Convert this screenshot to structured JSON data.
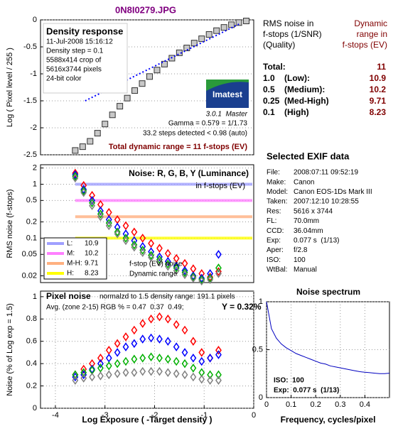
{
  "title": "0N8I0279.JPG",
  "chart_data": [
    {
      "type": "scatter",
      "ylabel": "Log ( Pixel level / 255 )",
      "xlim": [
        -4.3,
        0
      ],
      "ylim": [
        -2.5,
        0
      ],
      "yticks": [
        0,
        -0.5,
        -1,
        -1.5,
        -2,
        -2.5
      ],
      "grid": true,
      "annotations": [
        "Density response",
        "11-Jul-2008 15:16:12",
        "Density step = 0.1",
        "5588x414 crop of",
        "5616x3744 pixels",
        "24-bit color",
        "Gamma = 0.579 = 1/1.73",
        "33.2 steps detected < 0.98 (auto)",
        "Total dynamic range = 11 f-stops (EV)"
      ],
      "logo": [
        "Imatest",
        "3.0.1  Master"
      ],
      "series": [
        {
          "marker": "square",
          "color": "#c8c8c8",
          "x": [
            -3.6,
            -3.45,
            -3.3,
            -3.15,
            -3.0,
            -2.85,
            -2.7,
            -2.55,
            -2.4,
            -2.25,
            -2.1,
            -1.95,
            -1.8,
            -1.65,
            -1.5,
            -1.35,
            -1.2,
            -1.05,
            -0.9,
            -0.75,
            -0.6,
            -0.45,
            -0.3,
            -0.15
          ],
          "values": [
            -2.42,
            -2.35,
            -2.25,
            -2.1,
            -1.93,
            -1.76,
            -1.6,
            -1.45,
            -1.31,
            -1.18,
            -1.05,
            -0.93,
            -0.82,
            -0.71,
            -0.61,
            -0.52,
            -0.43,
            -0.35,
            -0.27,
            -0.2,
            -0.14,
            -0.09,
            -0.05,
            -0.02
          ]
        },
        {
          "marker": "dotted",
          "color": "#0000ff",
          "x": [
            -3.4,
            -0.3
          ],
          "values": [
            -1.5,
            -0.08
          ]
        }
      ]
    },
    {
      "type": "scatter",
      "title": "Noise: R, G, B, Y (Luminance)",
      "ylabel": "RMS noise (f-stops)",
      "log": true,
      "xlim": [
        -4.3,
        0
      ],
      "ylim": [
        0.015,
        2.3
      ],
      "yticks": [
        2,
        1,
        0.5,
        0.2,
        0.1,
        0.05,
        0.02
      ],
      "grid": true,
      "annotations": [
        "in f-stops (EV)",
        "f-stop (EV) noise",
        "Dynamic range"
      ],
      "bands": [
        {
          "name": "L:",
          "value": 10.9,
          "level": 1,
          "color": "#a0a0ff"
        },
        {
          "name": "M:",
          "value": 10.2,
          "level": 0.5,
          "color": "#ff80ff"
        },
        {
          "name": "M-H:",
          "value": 9.71,
          "level": 0.25,
          "color": "#ffb080"
        },
        {
          "name": "H:",
          "value": 8.23,
          "level": 0.1,
          "color": "#ffff00"
        }
      ],
      "x": [
        -3.6,
        -3.43,
        -3.26,
        -3.09,
        -2.92,
        -2.75,
        -2.58,
        -2.41,
        -2.24,
        -2.07,
        -1.9,
        -1.73,
        -1.56,
        -1.39,
        -1.22,
        -1.05,
        -0.88,
        -0.71
      ],
      "series": [
        {
          "marker": "diamond",
          "color": "#ff0000",
          "values": [
            1.6,
            0.95,
            0.62,
            0.42,
            0.3,
            0.22,
            0.17,
            0.13,
            0.1,
            0.08,
            0.065,
            0.052,
            0.042,
            0.034,
            0.027,
            0.022,
            0.019,
            0.024
          ]
        },
        {
          "marker": "diamond",
          "color": "#0000ff",
          "values": [
            1.5,
            0.8,
            0.5,
            0.32,
            0.22,
            0.16,
            0.12,
            0.09,
            0.07,
            0.056,
            0.045,
            0.037,
            0.03,
            0.025,
            0.02,
            0.018,
            0.022,
            0.05
          ]
        },
        {
          "marker": "diamond",
          "color": "#00b000",
          "values": [
            1.4,
            0.75,
            0.45,
            0.28,
            0.19,
            0.13,
            0.1,
            0.075,
            0.06,
            0.048,
            0.04,
            0.033,
            0.028,
            0.023,
            0.019,
            0.017,
            0.018,
            0.028
          ]
        },
        {
          "marker": "diamond",
          "color": "#808080",
          "values": [
            1.3,
            0.7,
            0.4,
            0.25,
            0.17,
            0.12,
            0.09,
            0.068,
            0.054,
            0.044,
            0.036,
            0.03,
            0.025,
            0.021,
            0.018,
            0.016,
            0.017,
            0.022
          ]
        }
      ]
    },
    {
      "type": "scatter",
      "title": "Pixel noise",
      "subtitle": "normalzd to 1.5 density range: 191.1 pixels",
      "annotations": [
        "Avg. (zone 2-15) RGB % = 0.47  0.37  0.49;",
        "Y = 0.32%"
      ],
      "ylabel": "Noise (% of Log exp = 1.5)",
      "xlabel": "Log Exposure ( -Target density )",
      "xlim": [
        -4.3,
        0
      ],
      "xticks": [
        -4,
        -3,
        -2,
        -1,
        0
      ],
      "ylim": [
        0,
        1.05
      ],
      "yticks": [
        0,
        0.2,
        0.4,
        0.6,
        0.8,
        1
      ],
      "grid": true,
      "x": [
        -3.6,
        -3.43,
        -3.26,
        -3.09,
        -2.92,
        -2.75,
        -2.58,
        -2.41,
        -2.24,
        -2.07,
        -1.9,
        -1.73,
        -1.56,
        -1.39,
        -1.22,
        -1.05,
        -0.88,
        -0.71
      ],
      "series": [
        {
          "marker": "diamond",
          "color": "#ff0000",
          "values": [
            0.3,
            0.35,
            0.4,
            0.45,
            0.52,
            0.58,
            0.64,
            0.7,
            0.76,
            0.8,
            0.82,
            0.8,
            0.75,
            0.7,
            0.6,
            0.5,
            0.45,
            0.52
          ]
        },
        {
          "marker": "diamond",
          "color": "#0000ff",
          "values": [
            0.28,
            0.3,
            0.35,
            0.4,
            0.45,
            0.5,
            0.55,
            0.58,
            0.62,
            0.63,
            0.62,
            0.6,
            0.55,
            0.5,
            0.45,
            0.42,
            0.45,
            0.48
          ]
        },
        {
          "marker": "diamond",
          "color": "#00b000",
          "values": [
            0.3,
            0.32,
            0.34,
            0.36,
            0.38,
            0.4,
            0.42,
            0.44,
            0.45,
            0.46,
            0.45,
            0.44,
            0.42,
            0.4,
            0.36,
            0.32,
            0.3,
            0.3
          ]
        },
        {
          "marker": "diamond",
          "color": "#808080",
          "values": [
            0.25,
            0.27,
            0.28,
            0.29,
            0.3,
            0.31,
            0.32,
            0.32,
            0.33,
            0.33,
            0.33,
            0.32,
            0.31,
            0.3,
            0.28,
            0.26,
            0.25,
            0.25
          ]
        }
      ]
    },
    {
      "type": "line",
      "title": "Noise spectrum",
      "xlabel": "Frequency, cycles/pixel",
      "annotations": [
        "ISO:  100",
        "Exp:  0.077 s  (1/13)"
      ],
      "xlim": [
        0,
        0.5
      ],
      "xticks": [
        0,
        0.1,
        0.2,
        0.3,
        0.4
      ],
      "ylim": [
        0,
        1
      ],
      "yticks": [
        0,
        0.5,
        1
      ],
      "grid": true,
      "x": [
        0,
        0.02,
        0.04,
        0.06,
        0.08,
        0.1,
        0.12,
        0.14,
        0.16,
        0.18,
        0.2,
        0.22,
        0.24,
        0.26,
        0.28,
        0.3,
        0.32,
        0.34,
        0.36,
        0.38,
        0.4,
        0.42,
        0.44,
        0.46,
        0.48,
        0.5
      ],
      "series": [
        {
          "marker": "line",
          "color": "#0000c0",
          "values": [
            1,
            0.72,
            0.62,
            0.56,
            0.52,
            0.49,
            0.46,
            0.44,
            0.42,
            0.4,
            0.38,
            0.36,
            0.35,
            0.33,
            0.32,
            0.31,
            0.3,
            0.29,
            0.28,
            0.27,
            0.265,
            0.26,
            0.255,
            0.25,
            0.25,
            0.255
          ]
        }
      ]
    }
  ],
  "summary": {
    "left": [
      "RMS noise in",
      "f-stops (1/SNR)",
      "(Quality)"
    ],
    "right": [
      "Dynamic",
      "range in",
      "f-stops (EV)"
    ],
    "rows": [
      {
        "label": "Total:",
        "value": 11
      },
      {
        "label": "1.0    (Low):",
        "value": 10.9
      },
      {
        "label": "0.5    (Medium):",
        "value": 10.2
      },
      {
        "label": "0.25  (Med-High)",
        "value": 9.71
      },
      {
        "label": "0.1    (High)",
        "value": 8.23
      }
    ]
  },
  "exif": {
    "title": "Selected EXIF data",
    "rows": [
      [
        "File:",
        "2008:07:11 09:52:19"
      ],
      [
        "Make:",
        "Canon"
      ],
      [
        "Model:",
        "Canon EOS-1Ds Mark III"
      ],
      [
        "Taken:",
        "2007:12:10 10:28:55"
      ],
      [
        "Res:",
        "5616 x 3744"
      ],
      [
        "FL:",
        "70.0mm"
      ],
      [
        "CCD:",
        "36.04mm"
      ],
      [
        "Exp:",
        "0.077 s  (1/13)"
      ],
      [
        "Aper:",
        "f/2.8"
      ],
      [
        "ISO:",
        "100"
      ],
      [
        "WtBal:",
        "Manual"
      ]
    ]
  }
}
